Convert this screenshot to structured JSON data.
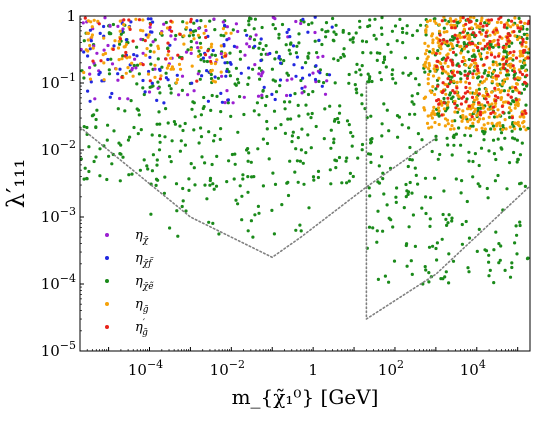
{
  "chart_data": {
    "type": "scatter",
    "title": "",
    "xlabel": "m_{χ̃₁⁰} [GeV]",
    "ylabel": "λ′₁₁₁",
    "xscale": "log",
    "yscale": "log",
    "xlim": [
      2e-06,
      200000.0
    ],
    "ylim": [
      1e-05,
      1
    ],
    "grid": false,
    "legend_position": "lower-left",
    "x_ticks": [
      {
        "value": 0.0001,
        "mantissa": "10",
        "exp": "−4"
      },
      {
        "value": 0.01,
        "mantissa": "10",
        "exp": "−2"
      },
      {
        "value": 1,
        "mantissa": "1",
        "exp": ""
      },
      {
        "value": 100,
        "mantissa": "10",
        "exp": "2"
      },
      {
        "value": 10000,
        "mantissa": "10",
        "exp": "4"
      }
    ],
    "y_ticks": [
      {
        "value": 1e-05,
        "mantissa": "10",
        "exp": "−5"
      },
      {
        "value": 0.0001,
        "mantissa": "10",
        "exp": "−4"
      },
      {
        "value": 0.001,
        "mantissa": "10",
        "exp": "−3"
      },
      {
        "value": 0.01,
        "mantissa": "10",
        "exp": "−2"
      },
      {
        "value": 0.1,
        "mantissa": "10",
        "exp": "−1"
      },
      {
        "value": 1,
        "mantissa": "1",
        "exp": ""
      }
    ],
    "series": [
      {
        "name": "η_χ̃",
        "legend_main": "η",
        "legend_sub": "χ̃",
        "legend_sup": "",
        "color": "#9b1fd1",
        "regions": [
          {
            "x": [
              1e-06,
              3
            ],
            "y": [
              0.05,
              1
            ],
            "n": 110
          }
        ]
      },
      {
        "name": "η_χ̃f̃",
        "legend_main": "η",
        "legend_sub": "χ̃f̃",
        "legend_sup": "",
        "color": "#2128e0",
        "regions": [
          {
            "x": [
              1e-06,
              3
            ],
            "y": [
              0.05,
              1
            ],
            "n": 120
          }
        ]
      },
      {
        "name": "η_χ̃ẽ",
        "legend_main": "η",
        "legend_sub": "χ̃ẽ",
        "legend_sup": "",
        "color": "#1a8a1a",
        "regions": [
          {
            "x": [
              1e-06,
              200000.0
            ],
            "y": [
              0.1,
              1
            ],
            "n": 360
          },
          {
            "x": [
              1e-06,
              200000.0
            ],
            "y": [
              0.003,
              0.1
            ],
            "n": 380
          },
          {
            "x": [
              0.0001,
              1
            ],
            "y": [
              0.0005,
              0.003
            ],
            "n": 40
          },
          {
            "x": [
              20,
              200000.0
            ],
            "y": [
              0.0001,
              0.003
            ],
            "n": 110
          },
          {
            "x": [
              1000,
              200000.0
            ],
            "y": [
              0.01,
              1
            ],
            "n": 160
          }
        ]
      },
      {
        "name": "η_g̃",
        "legend_main": "η",
        "legend_sub": "g̃",
        "legend_sup": "",
        "color": "#f5a20a",
        "regions": [
          {
            "x": [
              500,
              200000.0
            ],
            "y": [
              0.02,
              1
            ],
            "n": 420
          },
          {
            "x": [
              1e-06,
              0.01
            ],
            "y": [
              0.1,
              1
            ],
            "n": 110
          }
        ]
      },
      {
        "name": "η′_g̃",
        "legend_main": "η",
        "legend_sub": "g̃",
        "legend_sup": "′",
        "color": "#e8231a",
        "regions": [
          {
            "x": [
              1000,
              200000.0
            ],
            "y": [
              0.03,
              1
            ],
            "n": 180
          },
          {
            "x": [
              1e-06,
              0.01
            ],
            "y": [
              0.1,
              1
            ],
            "n": 40
          }
        ]
      }
    ],
    "boundary_curves": [
      {
        "style": "dotted",
        "color": "#808080",
        "points": [
          [
            2e-06,
            0.022
          ],
          [
            0.001,
            0.001
          ],
          [
            0.1,
            0.00025
          ],
          [
            0.5,
            0.0005
          ],
          [
            20,
            0.0028
          ],
          [
            1000,
            0.015
          ]
        ]
      },
      {
        "style": "dotted",
        "color": "#808080",
        "points": [
          [
            20,
            0.1
          ],
          [
            20,
            3e-05
          ],
          [
            1000,
            0.00014
          ],
          [
            200000.0,
            0.0029
          ]
        ]
      }
    ]
  }
}
